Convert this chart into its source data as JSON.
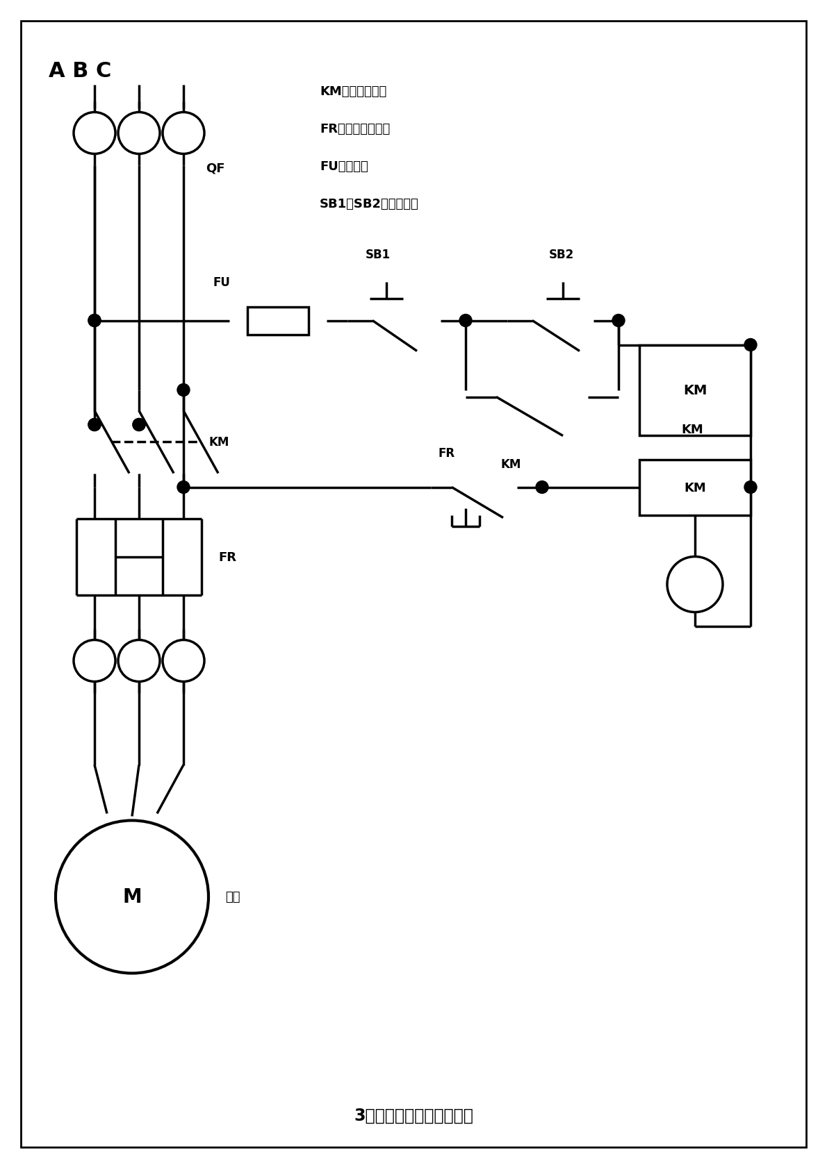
{
  "title": "3相电机启、停控制接线图",
  "abc_label": "A B C",
  "legend_lines": [
    "KM：交流接触器",
    "FR：热过载继电器",
    "FU：保险丝",
    "SB1、SB2：启停按鈕"
  ],
  "labels": {
    "QF": "QF",
    "FU": "FU",
    "SB1": "SB1",
    "SB2": "SB2",
    "KM_upper": "KM",
    "KM_lower": "KM",
    "KM_main": "KM",
    "FR_main": "FR",
    "FR_contact": "FR",
    "M": "M",
    "motor_label": "电机"
  },
  "bg_color": "#ffffff",
  "line_color": "#000000",
  "line_width": 2.5
}
